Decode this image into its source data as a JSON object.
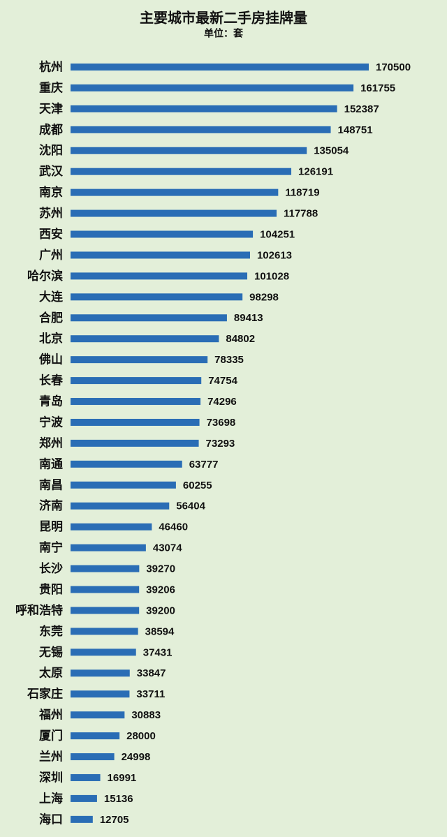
{
  "chart_data": {
    "type": "bar",
    "orientation": "horizontal",
    "title": "主要城市最新二手房挂牌量",
    "subtitle": "单位：套",
    "categories": [
      "杭州",
      "重庆",
      "天津",
      "成都",
      "沈阳",
      "武汉",
      "南京",
      "苏州",
      "西安",
      "广州",
      "哈尔滨",
      "大连",
      "合肥",
      "北京",
      "佛山",
      "长春",
      "青岛",
      "宁波",
      "郑州",
      "南通",
      "南昌",
      "济南",
      "昆明",
      "南宁",
      "长沙",
      "贵阳",
      "呼和浩特",
      "东莞",
      "无锡",
      "太原",
      "石家庄",
      "福州",
      "厦门",
      "兰州",
      "深圳",
      "上海",
      "海口"
    ],
    "values": [
      170500,
      161755,
      152387,
      148751,
      135054,
      126191,
      118719,
      117788,
      104251,
      102613,
      101028,
      98298,
      89413,
      84802,
      78335,
      74754,
      74296,
      73698,
      73293,
      63777,
      60255,
      56404,
      46460,
      43074,
      39270,
      39206,
      39200,
      38594,
      37431,
      33847,
      33711,
      30883,
      28000,
      24998,
      16991,
      15136,
      12705
    ],
    "color": "#2a6db5"
  }
}
